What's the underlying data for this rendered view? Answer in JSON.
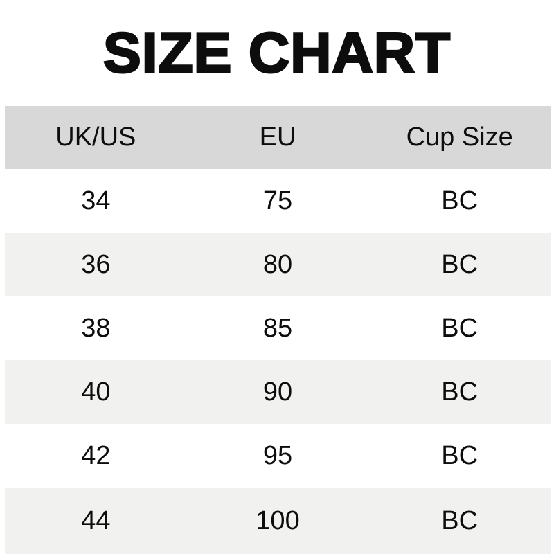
{
  "title": "SIZE CHART",
  "table": {
    "headers": [
      "UK/US",
      "EU",
      "Cup Size"
    ],
    "rows": [
      [
        "34",
        "75",
        "BC"
      ],
      [
        "36",
        "80",
        "BC"
      ],
      [
        "38",
        "85",
        "BC"
      ],
      [
        "40",
        "90",
        "BC"
      ],
      [
        "42",
        "95",
        "BC"
      ],
      [
        "44",
        "100",
        "BC"
      ]
    ]
  },
  "colors": {
    "bg": "#ffffff",
    "header_bg": "#d8d8d8",
    "stripe_bg": "#f1f1ef",
    "text": "#0d0d0d"
  },
  "chart_data": {
    "type": "table",
    "title": "SIZE CHART",
    "columns": [
      "UK/US",
      "EU",
      "Cup Size"
    ],
    "rows": [
      [
        "34",
        "75",
        "BC"
      ],
      [
        "36",
        "80",
        "BC"
      ],
      [
        "38",
        "85",
        "BC"
      ],
      [
        "40",
        "90",
        "BC"
      ],
      [
        "42",
        "95",
        "BC"
      ],
      [
        "44",
        "100",
        "BC"
      ]
    ]
  }
}
